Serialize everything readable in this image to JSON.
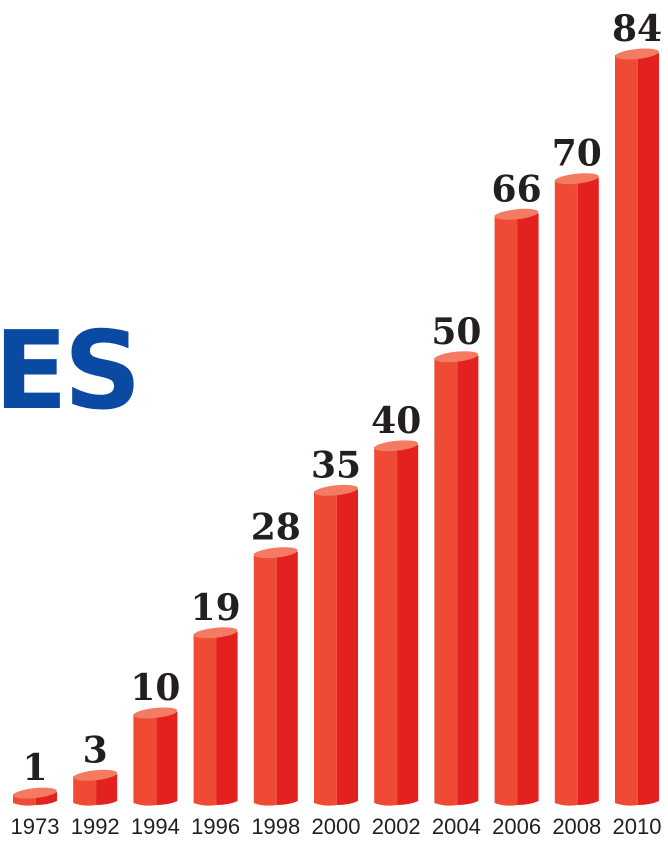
{
  "heading_fragment": "ES",
  "colors": {
    "bar_left": "#ef4a33",
    "bar_right": "#e3211f",
    "bar_top": "#f47a62",
    "text": "#231f20",
    "heading": "#0b4aa2"
  },
  "chart_data": {
    "type": "bar",
    "title": "",
    "xlabel": "",
    "ylabel": "",
    "categories": [
      "1973",
      "1992",
      "1994",
      "1996",
      "1998",
      "2000",
      "2002",
      "2004",
      "2006",
      "2008",
      "2010"
    ],
    "values": [
      1,
      3,
      10,
      19,
      28,
      35,
      40,
      50,
      66,
      70,
      84
    ],
    "data_labels": [
      "1",
      "3",
      "10",
      "19",
      "28",
      "35",
      "40",
      "50",
      "66",
      "70",
      "84"
    ],
    "ylim": [
      0,
      84
    ],
    "grid": false,
    "legend": "none",
    "style": "3d-cylinder"
  }
}
